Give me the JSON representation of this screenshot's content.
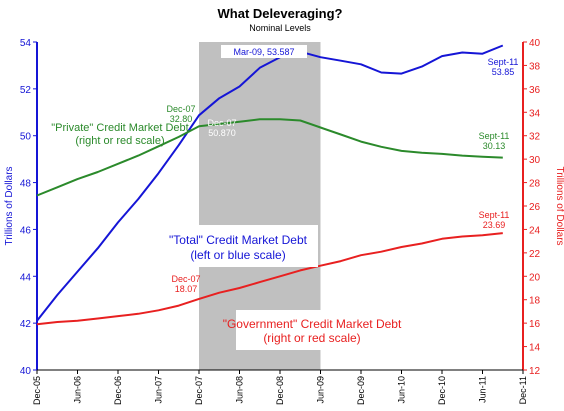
{
  "chart_data": {
    "type": "line",
    "title": "What Deleveraging?",
    "subtitle": "Nominal Levels",
    "y_left_label": "Trillions of Dollars",
    "y_right_label": "Trillions of Dollars",
    "y_left_range": [
      40,
      54
    ],
    "y_right_range": [
      12,
      40
    ],
    "y_left_ticks": [
      "40",
      "42",
      "44",
      "46",
      "48",
      "50",
      "52",
      "54"
    ],
    "y_right_ticks": [
      "12",
      "14",
      "16",
      "18",
      "20",
      "22",
      "24",
      "26",
      "28",
      "30",
      "32",
      "34",
      "36",
      "38",
      "40"
    ],
    "x_tick_labels": [
      "Dec-05",
      "Jun-06",
      "Dec-06",
      "Jun-07",
      "Dec-07",
      "Jun-08",
      "Dec-08",
      "Jun-09",
      "Dec-09",
      "Jun-10",
      "Dec-10",
      "Jun-11",
      "Dec-11"
    ],
    "x_range_quarters": [
      0,
      24
    ],
    "recession_band_quarters": [
      8,
      14
    ],
    "grid": "off",
    "series": [
      {
        "name": "\"Total\" Credit Market Debt",
        "axis": "left",
        "color": "#1515d6",
        "x_quarters": [
          0,
          1,
          2,
          3,
          4,
          5,
          6,
          7,
          8,
          9,
          10,
          11,
          12,
          13,
          14,
          15,
          16,
          17,
          18,
          19,
          20,
          21,
          22,
          23
        ],
        "values": [
          42.1,
          43.2,
          44.2,
          45.2,
          46.3,
          47.3,
          48.4,
          49.6,
          50.87,
          51.6,
          52.1,
          52.9,
          53.35,
          53.587,
          53.35,
          53.2,
          53.05,
          52.7,
          52.65,
          52.95,
          53.4,
          53.55,
          53.5,
          53.85
        ]
      },
      {
        "name": "\"Private\" Credit Market Debt",
        "axis": "right",
        "color": "#2b8a2b",
        "x_quarters": [
          0,
          1,
          2,
          3,
          4,
          5,
          6,
          7,
          8,
          9,
          10,
          11,
          12,
          13,
          14,
          15,
          16,
          17,
          18,
          19,
          20,
          21,
          22,
          23
        ],
        "values": [
          26.9,
          27.6,
          28.3,
          28.9,
          29.6,
          30.3,
          31.1,
          31.9,
          32.8,
          33.0,
          33.2,
          33.4,
          33.4,
          33.3,
          32.7,
          32.1,
          31.5,
          31.05,
          30.7,
          30.55,
          30.45,
          30.3,
          30.2,
          30.13
        ]
      },
      {
        "name": "\"Government\" Credit Market Debt",
        "axis": "right",
        "color": "#e82020",
        "x_quarters": [
          0,
          1,
          2,
          3,
          4,
          5,
          6,
          7,
          8,
          9,
          10,
          11,
          12,
          13,
          14,
          15,
          16,
          17,
          18,
          19,
          20,
          21,
          22,
          23
        ],
        "values": [
          15.9,
          16.1,
          16.2,
          16.4,
          16.6,
          16.8,
          17.1,
          17.5,
          18.07,
          18.6,
          19.0,
          19.5,
          20.0,
          20.5,
          20.9,
          21.3,
          21.8,
          22.1,
          22.5,
          22.8,
          23.2,
          23.4,
          23.5,
          23.69
        ]
      }
    ],
    "data_labels": [
      {
        "series": 0,
        "lines": [
          "Mar-09, 53.587"
        ],
        "boxed": true
      },
      {
        "series": 0,
        "lines": [
          "Dec-07",
          "50.870"
        ],
        "boxed": false
      },
      {
        "series": 0,
        "lines": [
          "Sept-11",
          "53.85"
        ],
        "boxed": false
      },
      {
        "series": 1,
        "lines": [
          "Dec-07",
          "32.80"
        ],
        "boxed": false
      },
      {
        "series": 1,
        "lines": [
          "Sept-11",
          "30.13"
        ],
        "boxed": false
      },
      {
        "series": 2,
        "lines": [
          "Dec-07",
          "18.07"
        ],
        "boxed": false
      },
      {
        "series": 2,
        "lines": [
          "Sept-11",
          "23.69"
        ],
        "boxed": false
      }
    ],
    "annotations": [
      {
        "series": 1,
        "lines": [
          "\"Private\" Credit Market Debt",
          "(right or red scale)"
        ]
      },
      {
        "series": 0,
        "lines": [
          "\"Total\" Credit Market Debt",
          "(left or blue scale)"
        ]
      },
      {
        "series": 2,
        "lines": [
          "\"Government\" Credit Market Debt",
          "(right or red scale)"
        ]
      }
    ]
  },
  "colors": {
    "left_axis": "#1515d6",
    "right_axis": "#e82020",
    "recession_band": "#c0c0c0"
  }
}
